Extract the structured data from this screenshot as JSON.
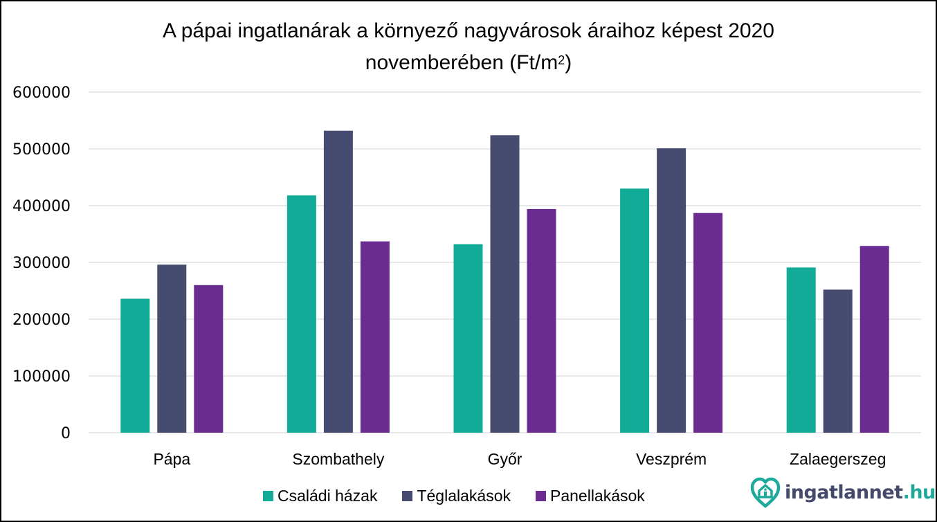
{
  "title": {
    "line1": "A pápai ingatlanárak a környező nagyvárosok áraihoz képest 2020",
    "line2_main": "novemberében (Ft/m",
    "line2_sup": "2",
    "line2_end": ")"
  },
  "chart_data": {
    "type": "bar",
    "title": "A pápai ingatlanárak a környező nagyvárosok áraihoz képest 2020 novemberében (Ft/m2)",
    "xlabel": "",
    "ylabel": "",
    "categories": [
      "Pápa",
      "Szombathely",
      "Győr",
      "Veszprém",
      "Zalaegerszeg"
    ],
    "series": [
      {
        "name": "Családi házak",
        "color": "#12ab98",
        "values": [
          236000,
          418000,
          332000,
          430000,
          291000
        ]
      },
      {
        "name": "Téglalakások",
        "color": "#464b70",
        "values": [
          296000,
          532000,
          524000,
          501000,
          252000
        ]
      },
      {
        "name": "Panellakások",
        "color": "#6a2c91",
        "values": [
          260000,
          337000,
          394000,
          387000,
          329000
        ]
      }
    ],
    "ylim": [
      0,
      600000
    ],
    "yticks": [
      "0",
      "100000",
      "200000",
      "300000",
      "400000",
      "500000",
      "600000"
    ],
    "grid": true,
    "legend_position": "bottom"
  },
  "logo": {
    "name": "ingatlannet",
    "tld": ".hu",
    "brand_color": "#1fa99a",
    "text_color": "#454a6b",
    "icon": "heart-house-icon"
  }
}
